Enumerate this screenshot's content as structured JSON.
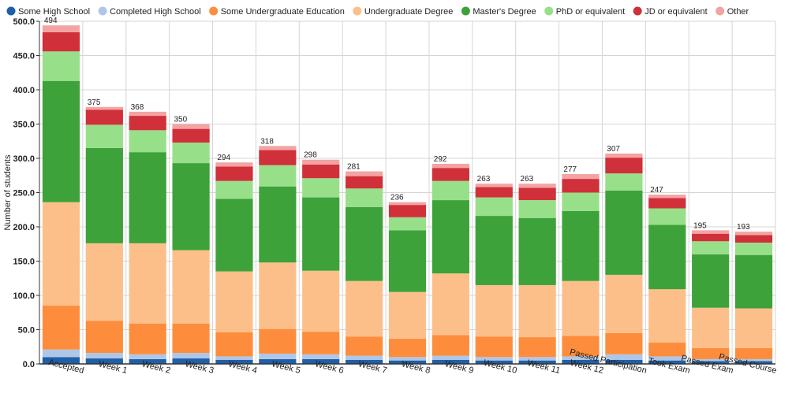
{
  "chart_data": {
    "type": "bar",
    "stacked": true,
    "ylabel": "Number of students",
    "xlabel": "",
    "ylim": [
      0,
      500
    ],
    "yticks": [
      0,
      50,
      100,
      150,
      200,
      250,
      300,
      350,
      400,
      450,
      500
    ],
    "ytick_labels": [
      "0.0",
      "50.0",
      "100.0",
      "150.0",
      "200.0",
      "250.0",
      "300.0",
      "350.0",
      "400.0",
      "450.0",
      "500.0"
    ],
    "grid": true,
    "legend_position": "top",
    "categories": [
      "Accepted",
      "Week 1",
      "Week 2",
      "Week 3",
      "Week 4",
      "Week 5",
      "Week 6",
      "Week 7",
      "Week 8",
      "Week 9",
      "Week 10",
      "Week 11",
      "Week 12",
      "Passed Participation",
      "Took Exam",
      "Passed Exam",
      "Passed Course"
    ],
    "totals": [
      494,
      375,
      368,
      350,
      294,
      318,
      298,
      281,
      236,
      292,
      263,
      263,
      277,
      307,
      247,
      195,
      193
    ],
    "series": [
      {
        "name": "Some High School",
        "color": "#1f5fa8",
        "values": [
          10,
          8,
          7,
          8,
          6,
          7,
          7,
          6,
          5,
          6,
          5,
          5,
          6,
          6,
          5,
          4,
          4
        ]
      },
      {
        "name": "Completed High School",
        "color": "#aec7e8",
        "values": [
          11,
          8,
          7,
          8,
          5,
          8,
          7,
          6,
          5,
          6,
          5,
          5,
          5,
          8,
          6,
          3,
          3
        ]
      },
      {
        "name": "Some Undergraduate Education",
        "color": "#fd8d3c",
        "values": [
          64,
          47,
          45,
          43,
          35,
          36,
          33,
          28,
          27,
          30,
          30,
          29,
          30,
          31,
          20,
          16,
          16
        ]
      },
      {
        "name": "Undergraduate Degree",
        "color": "#fdbf8a",
        "values": [
          151,
          113,
          117,
          107,
          89,
          97,
          89,
          81,
          68,
          90,
          75,
          76,
          80,
          85,
          78,
          59,
          58
        ]
      },
      {
        "name": "Master's Degree",
        "color": "#3ea23a",
        "values": [
          177,
          139,
          133,
          127,
          106,
          111,
          107,
          108,
          90,
          107,
          101,
          98,
          102,
          123,
          94,
          78,
          78
        ]
      },
      {
        "name": "PhD or equivalent",
        "color": "#98df8a",
        "values": [
          43,
          34,
          32,
          30,
          26,
          31,
          28,
          27,
          19,
          28,
          27,
          26,
          27,
          25,
          24,
          19,
          18
        ]
      },
      {
        "name": "JD or equivalent",
        "color": "#d0303a",
        "values": [
          28,
          22,
          21,
          20,
          21,
          22,
          20,
          18,
          18,
          19,
          15,
          18,
          20,
          23,
          15,
          11,
          11
        ]
      },
      {
        "name": "Other",
        "color": "#f4a3a3",
        "values": [
          10,
          4,
          6,
          7,
          6,
          6,
          7,
          7,
          4,
          6,
          5,
          6,
          7,
          6,
          5,
          5,
          5
        ]
      }
    ]
  }
}
